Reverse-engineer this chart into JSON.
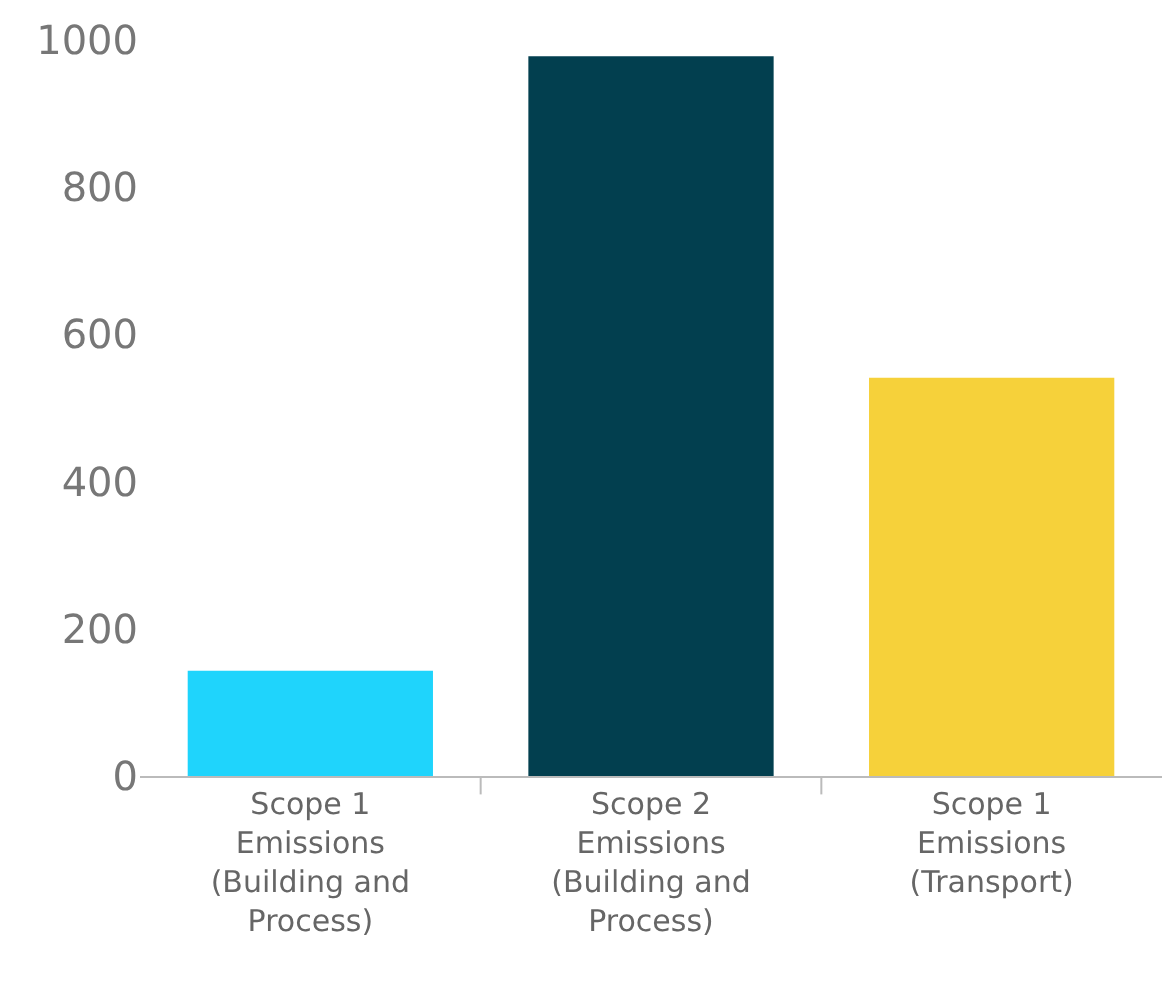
{
  "chart_data": {
    "type": "bar",
    "categories": [
      "Scope 1 Emissions (Building and Process)",
      "Scope 2 Emissions (Building and Process)",
      "Scope 1 Emissions (Transport)"
    ],
    "values": [
      143,
      978,
      541
    ],
    "colors": [
      "#1fd4fc",
      "#023f4f",
      "#f6d13a"
    ],
    "ylim": [
      0,
      1000
    ],
    "yticks": [
      0,
      200,
      400,
      600,
      800,
      1000
    ]
  }
}
